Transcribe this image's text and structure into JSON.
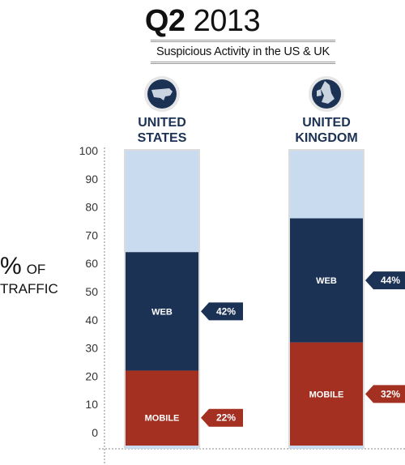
{
  "header": {
    "title_bold": "Q2",
    "title_year": "2013",
    "subtitle": "Suspicious Activity in the US & UK"
  },
  "colors": {
    "background_bar": "#c9dbee",
    "web": "#1b3255",
    "mobile": "#a33020",
    "badge_emblem": "#1b3255",
    "axis": "#888888"
  },
  "chart_data": {
    "type": "bar",
    "stacked": true,
    "ylabel": "% OF TRAFFIC",
    "ylabel_parts": [
      "%",
      "OF",
      "TRAFFIC"
    ],
    "ylim": [
      0,
      100
    ],
    "yticks": [
      0,
      10,
      20,
      30,
      40,
      50,
      60,
      70,
      80,
      90,
      100
    ],
    "categories": [
      {
        "label_line1": "UNITED",
        "label_line2": "STATES",
        "icon": "us-map-icon"
      },
      {
        "label_line1": "UNITED",
        "label_line2": "KINGDOM",
        "icon": "uk-map-icon"
      }
    ],
    "series": [
      {
        "name": "MOBILE",
        "values": [
          22,
          32
        ],
        "value_labels": [
          "22%",
          "32%"
        ],
        "color": "#a33020"
      },
      {
        "name": "WEB",
        "values": [
          42,
          44
        ],
        "value_labels": [
          "42%",
          "44%"
        ],
        "color": "#1b3255"
      }
    ],
    "grid": false
  }
}
